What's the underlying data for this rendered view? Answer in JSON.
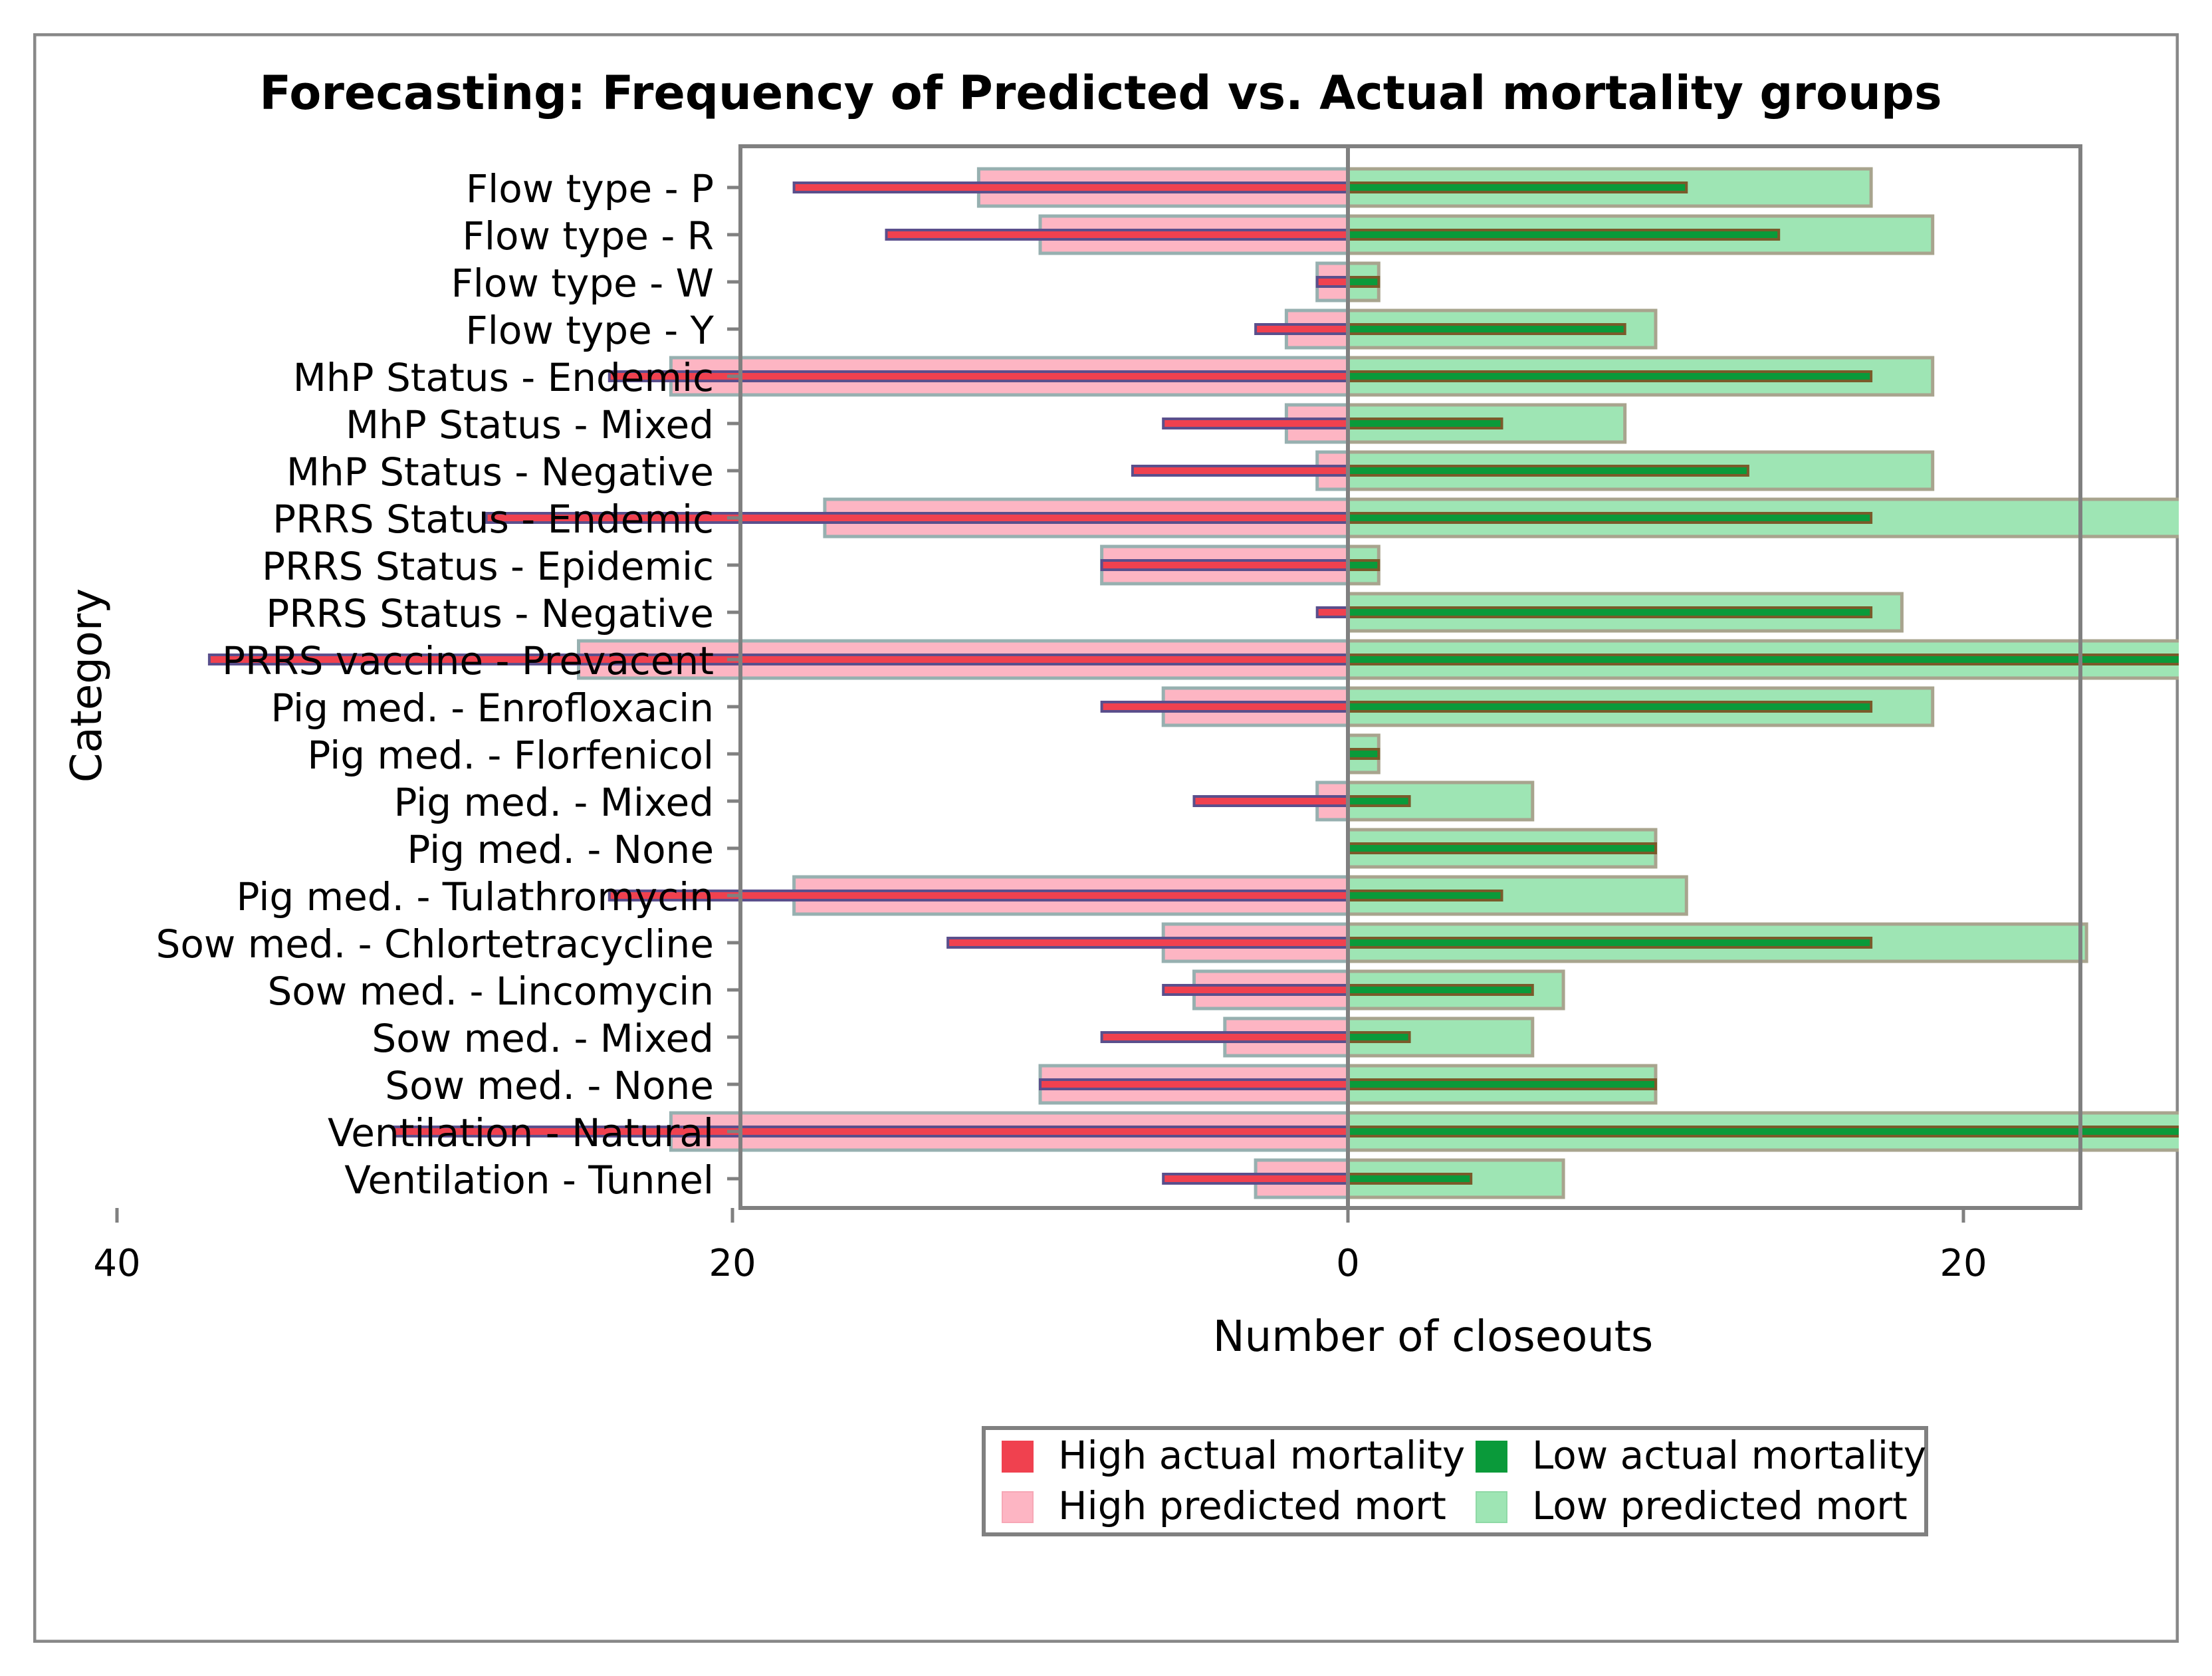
{
  "chart_data": {
    "type": "bar",
    "orientation": "horizontal-diverging",
    "title": "Forecasting: Frequency of Predicted vs. Actual mortality groups",
    "xlabel": "Number of closeouts",
    "ylabel": "Category",
    "xlim": [
      -40,
      47
    ],
    "xticks": [
      -40,
      -20,
      0,
      20,
      40
    ],
    "xtick_labels": [
      "40",
      "20",
      "0",
      "20",
      "40"
    ],
    "grid": false,
    "legend_position": "bottom-center",
    "categories": [
      "Flow type - P",
      "Flow type - R",
      "Flow type - W",
      "Flow type - Y",
      "MhP Status - Endemic",
      "MhP Status - Mixed",
      "MhP Status - Negative",
      "PRRS Status - Endemic",
      "PRRS Status - Epidemic",
      "PRRS Status - Negative",
      "PRRS vaccine - Prevacent",
      "Pig med. - Enrofloxacin",
      "Pig med. - Florfenicol",
      "Pig med. - Mixed",
      "Pig med. - None",
      "Pig med. - Tulathromycin",
      "Sow med. - Chlortetracycline",
      "Sow med. - Lincomycin",
      "Sow med. - Mixed",
      "Sow med. - None",
      "Ventilation - Natural",
      "Ventilation - Tunnel"
    ],
    "series": [
      {
        "name": "High actual mortality",
        "color": "#f0414f",
        "values": [
          18,
          15,
          1,
          3,
          24,
          6,
          7,
          28,
          8,
          1,
          37,
          8,
          0,
          5,
          0,
          24,
          13,
          6,
          8,
          10,
          31,
          6
        ]
      },
      {
        "name": "Low actual mortality",
        "color": "#0a9a3a",
        "values": [
          11,
          14,
          1,
          9,
          17,
          5,
          13,
          17,
          1,
          17,
          35,
          17,
          1,
          2,
          10,
          5,
          17,
          6,
          2,
          10,
          31,
          4
        ]
      },
      {
        "name": "High predicted mort",
        "color": "#fdb5c3",
        "values": [
          12,
          10,
          1,
          2,
          22,
          2,
          1,
          17,
          8,
          0,
          25,
          6,
          0,
          1,
          0,
          18,
          6,
          5,
          4,
          10,
          22,
          3
        ]
      },
      {
        "name": "Low predicted mort",
        "color": "#9ee5b4",
        "values": [
          17,
          19,
          1,
          10,
          19,
          9,
          19,
          28,
          1,
          18,
          47,
          19,
          1,
          6,
          10,
          11,
          24,
          7,
          6,
          10,
          40,
          7
        ]
      }
    ]
  }
}
